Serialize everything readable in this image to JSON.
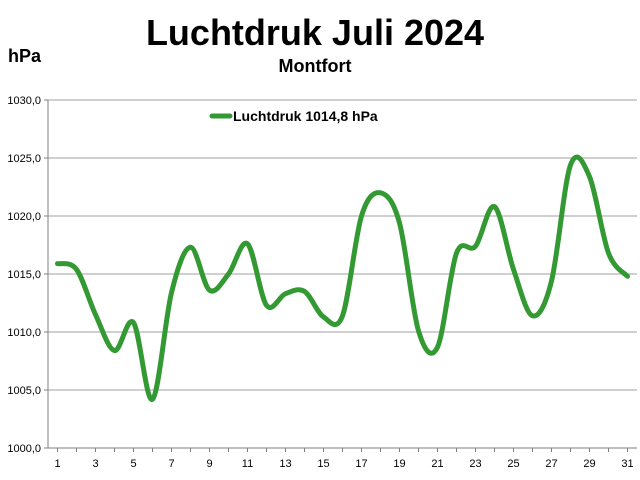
{
  "chart_data": {
    "type": "line",
    "title": "Luchtdruk Juli 2024",
    "subtitle": "Montfort",
    "ylabel": "hPa",
    "xlabel": "",
    "x": [
      1,
      2,
      3,
      4,
      5,
      6,
      7,
      8,
      9,
      10,
      11,
      12,
      13,
      14,
      15,
      16,
      17,
      18,
      19,
      20,
      21,
      22,
      23,
      24,
      25,
      26,
      27,
      28,
      29,
      30,
      31
    ],
    "x_ticks": [
      1,
      3,
      5,
      7,
      9,
      11,
      13,
      15,
      17,
      19,
      21,
      23,
      25,
      27,
      29,
      31
    ],
    "xlim": [
      0.5,
      31.5
    ],
    "ylim": [
      1000.0,
      1030.0
    ],
    "y_ticks": [
      "1000,0",
      "1005,0",
      "1010,0",
      "1015,0",
      "1020,0",
      "1025,0",
      "1030,0"
    ],
    "y_tick_values": [
      1000,
      1005,
      1010,
      1015,
      1020,
      1025,
      1030
    ],
    "grid": true,
    "legend_position": "top-center",
    "series": [
      {
        "name": "Luchtdruk 1014,8 hPa",
        "color": "#339933",
        "values": [
          1015.9,
          1015.4,
          1011.5,
          1008.4,
          1010.8,
          1004.2,
          1013.4,
          1017.3,
          1013.6,
          1015.0,
          1017.6,
          1012.3,
          1013.3,
          1013.5,
          1011.3,
          1011.4,
          1020.0,
          1022.0,
          1019.4,
          1010.1,
          1008.7,
          1016.8,
          1017.4,
          1020.8,
          1015.4,
          1011.4,
          1014.4,
          1024.4,
          1023.4,
          1016.8,
          1014.8
        ]
      }
    ]
  }
}
